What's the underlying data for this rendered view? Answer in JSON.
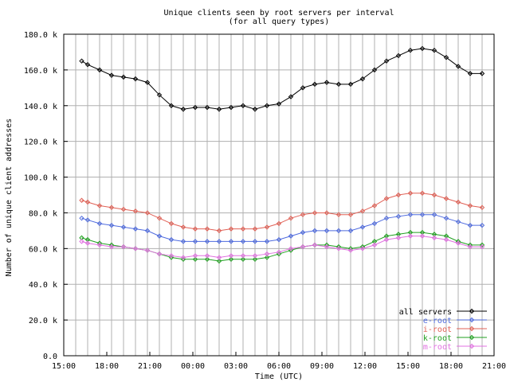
{
  "chart_data": {
    "type": "line",
    "title": "Unique clients seen by root servers per interval",
    "subtitle": "(for all query types)",
    "xlabel": "Time (UTC)",
    "ylabel": "Number of unique client addresses",
    "x_tick_labels": [
      "15:00",
      "18:00",
      "21:00",
      "00:00",
      "03:00",
      "06:00",
      "09:00",
      "12:00",
      "15:00",
      "18:00",
      "21:00"
    ],
    "y_tick_labels": [
      "0.0",
      "20.0 k",
      "40.0 k",
      "60.0 k",
      "80.0 k",
      "100.0 k",
      "120.0 k",
      "140.0 k",
      "160.0 k",
      "180.0 k"
    ],
    "xlim_hours": [
      0,
      36
    ],
    "ylim": [
      0,
      180000
    ],
    "grid": true,
    "legend_position": "bottom-right",
    "series": [
      {
        "name": "all servers",
        "color": "#000000",
        "x": [
          1.5,
          2,
          3,
          4,
          5,
          6,
          7,
          8,
          9,
          10,
          11,
          12,
          13,
          14,
          15,
          16,
          17,
          18,
          19,
          20,
          21,
          22,
          23,
          24,
          25,
          26,
          27,
          28,
          29,
          30,
          31,
          32,
          33,
          34,
          35
        ],
        "y": [
          165000,
          163000,
          160000,
          157000,
          156000,
          155000,
          153000,
          146000,
          140000,
          138000,
          139000,
          139000,
          138000,
          139000,
          140000,
          138000,
          140000,
          141000,
          145000,
          150000,
          152000,
          153000,
          152000,
          152000,
          155000,
          160000,
          165000,
          168000,
          171000,
          172000,
          171000,
          167000,
          162000,
          158000,
          158000
        ]
      },
      {
        "name": "e-root",
        "color": "#4f6bde",
        "x": [
          1.5,
          2,
          3,
          4,
          5,
          6,
          7,
          8,
          9,
          10,
          11,
          12,
          13,
          14,
          15,
          16,
          17,
          18,
          19,
          20,
          21,
          22,
          23,
          24,
          25,
          26,
          27,
          28,
          29,
          30,
          31,
          32,
          33,
          34,
          35
        ],
        "y": [
          77000,
          76000,
          74000,
          73000,
          72000,
          71000,
          70000,
          67000,
          65000,
          64000,
          64000,
          64000,
          64000,
          64000,
          64000,
          64000,
          64000,
          65000,
          67000,
          69000,
          70000,
          70000,
          70000,
          70000,
          72000,
          74000,
          77000,
          78000,
          79000,
          79000,
          79000,
          77000,
          75000,
          73000,
          73000
        ]
      },
      {
        "name": "i-root",
        "color": "#e06055",
        "x": [
          1.5,
          2,
          3,
          4,
          5,
          6,
          7,
          8,
          9,
          10,
          11,
          12,
          13,
          14,
          15,
          16,
          17,
          18,
          19,
          20,
          21,
          22,
          23,
          24,
          25,
          26,
          27,
          28,
          29,
          30,
          31,
          32,
          33,
          34,
          35
        ],
        "y": [
          87000,
          86000,
          84000,
          83000,
          82000,
          81000,
          80000,
          77000,
          74000,
          72000,
          71000,
          71000,
          70000,
          71000,
          71000,
          71000,
          72000,
          74000,
          77000,
          79000,
          80000,
          80000,
          79000,
          79000,
          81000,
          84000,
          88000,
          90000,
          91000,
          91000,
          90000,
          88000,
          86000,
          84000,
          83000
        ]
      },
      {
        "name": "k-root",
        "color": "#20a020",
        "x": [
          1.5,
          2,
          3,
          4,
          5,
          6,
          7,
          8,
          9,
          10,
          11,
          12,
          13,
          14,
          15,
          16,
          17,
          18,
          19,
          20,
          21,
          22,
          23,
          24,
          25,
          26,
          27,
          28,
          29,
          30,
          31,
          32,
          33,
          34,
          35
        ],
        "y": [
          66000,
          65000,
          63000,
          62000,
          61000,
          60000,
          59000,
          57000,
          55000,
          54000,
          54000,
          54000,
          53000,
          54000,
          54000,
          54000,
          55000,
          57000,
          59000,
          61000,
          62000,
          62000,
          61000,
          60000,
          61000,
          64000,
          67000,
          68000,
          69000,
          69000,
          68000,
          67000,
          64000,
          62000,
          62000
        ]
      },
      {
        "name": "m-root",
        "color": "#e070e0",
        "x": [
          1.5,
          2,
          3,
          4,
          5,
          6,
          7,
          8,
          9,
          10,
          11,
          12,
          13,
          14,
          15,
          16,
          17,
          18,
          19,
          20,
          21,
          22,
          23,
          24,
          25,
          26,
          27,
          28,
          29,
          30,
          31,
          32,
          33,
          34,
          35
        ],
        "y": [
          64000,
          63000,
          62000,
          61000,
          61000,
          60000,
          59000,
          57000,
          56000,
          55000,
          56000,
          56000,
          55000,
          56000,
          56000,
          56000,
          57000,
          58000,
          60000,
          61000,
          62000,
          61000,
          60000,
          59000,
          60000,
          62000,
          65000,
          66000,
          67000,
          67000,
          66000,
          65000,
          63000,
          61000,
          61000
        ]
      }
    ]
  }
}
